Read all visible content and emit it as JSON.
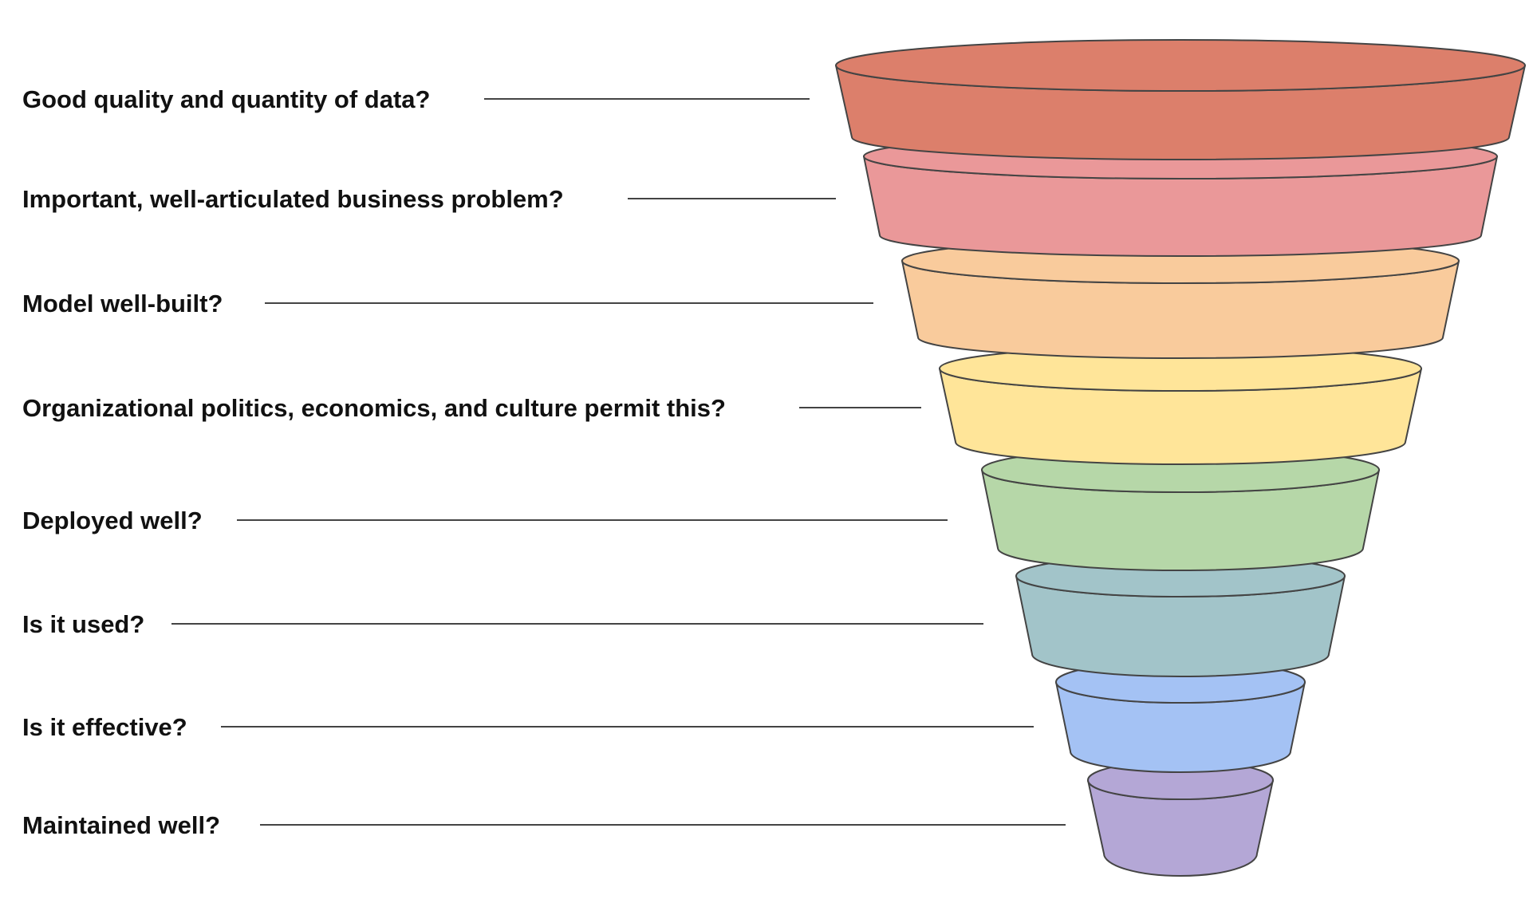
{
  "funnel": {
    "stages": [
      {
        "label": "Good quality and quantity of data?",
        "color": "#DC7F6B"
      },
      {
        "label": "Important, well-articulated business problem?",
        "color": "#EA9899"
      },
      {
        "label": "Model well-built?",
        "color": "#F9CB9C"
      },
      {
        "label": "Organizational politics, economics, and culture permit this?",
        "color": "#FFE599"
      },
      {
        "label": "Deployed well?",
        "color": "#B6D7A8"
      },
      {
        "label": "Is it used?",
        "color": "#A2C4C9"
      },
      {
        "label": "Is it effective?",
        "color": "#A4C2F4"
      },
      {
        "label": "Maintained well?",
        "color": "#B4A7D6"
      }
    ]
  }
}
